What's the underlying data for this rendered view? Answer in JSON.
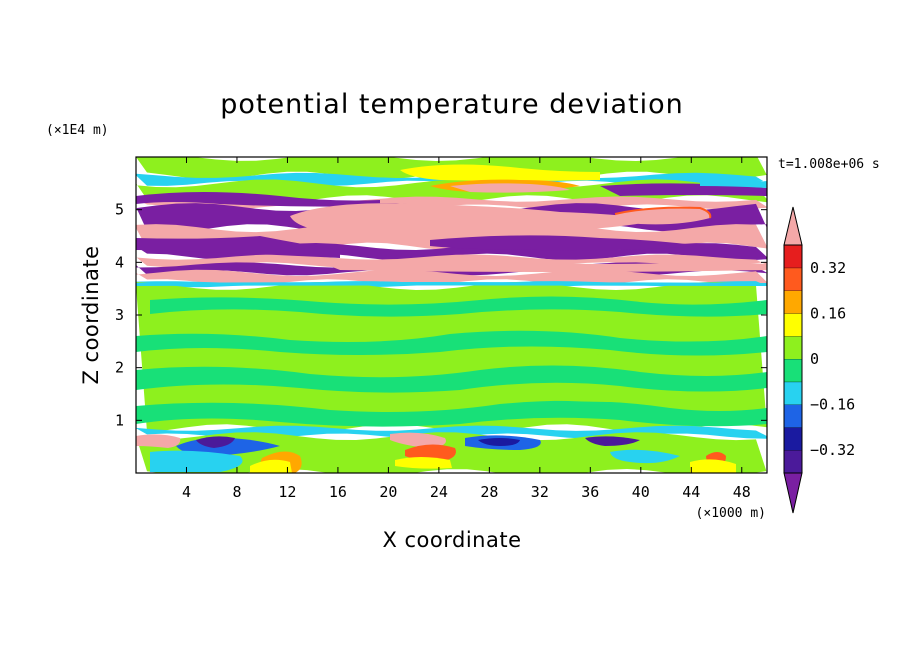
{
  "chart_data": {
    "type": "heatmap",
    "title": "potential temperature deviation",
    "xlabel": "X coordinate",
    "ylabel": "Z coordinate",
    "x_unit": "(×1000 m)",
    "y_unit": "(×1E4 m)",
    "time_label": "t=1.008e+06 s",
    "xlim": [
      0,
      50
    ],
    "ylim": [
      0,
      6
    ],
    "x_ticks": [
      4,
      8,
      12,
      16,
      20,
      24,
      28,
      32,
      36,
      40,
      44,
      48
    ],
    "y_ticks": [
      1,
      2,
      3,
      4,
      5
    ],
    "colorbar": {
      "levels": [
        -0.4,
        -0.32,
        -0.24,
        -0.16,
        -0.08,
        0,
        0.08,
        0.16,
        0.24,
        0.32,
        0.4
      ],
      "labeled_ticks": [
        "0.32",
        "0.16",
        "0",
        "−0.16",
        "−0.32"
      ],
      "colors": {
        "below": "#7a1fa2",
        "bins": [
          "#4b1a9a",
          "#1a1aa0",
          "#1e64e6",
          "#28d2f0",
          "#18e078",
          "#8ef01e",
          "#ffff00",
          "#ffa800",
          "#ff5a1e",
          "#e61e1e"
        ],
        "above": "#f4a8a8"
      },
      "extend": "both"
    },
    "bands": [
      {
        "z": [
          5.65,
          6.0
        ],
        "value": 0.04
      },
      {
        "z": [
          5.5,
          5.65
        ],
        "value": -0.14
      },
      {
        "z": [
          5.2,
          5.5
        ],
        "value": 0.02
      },
      {
        "z": [
          5.05,
          5.2
        ],
        "value": 0.45
      },
      {
        "z": [
          4.65,
          5.05
        ],
        "value": -0.45
      },
      {
        "z": [
          4.3,
          4.65
        ],
        "value": 0.45
      },
      {
        "z": [
          4.1,
          4.3
        ],
        "value": -0.45
      },
      {
        "z": [
          3.95,
          4.1
        ],
        "value": 0.45
      },
      {
        "z": [
          3.8,
          3.95
        ],
        "value": -0.45
      },
      {
        "z": [
          3.62,
          3.8
        ],
        "value": 0.45
      },
      {
        "z": [
          3.55,
          3.62
        ],
        "value": -0.14
      },
      {
        "z": [
          0.85,
          3.55
        ],
        "value": 0.0
      },
      {
        "z": [
          0.7,
          0.85
        ],
        "value": -0.1
      },
      {
        "z": [
          0.0,
          0.7
        ],
        "value": 0.03
      }
    ]
  }
}
